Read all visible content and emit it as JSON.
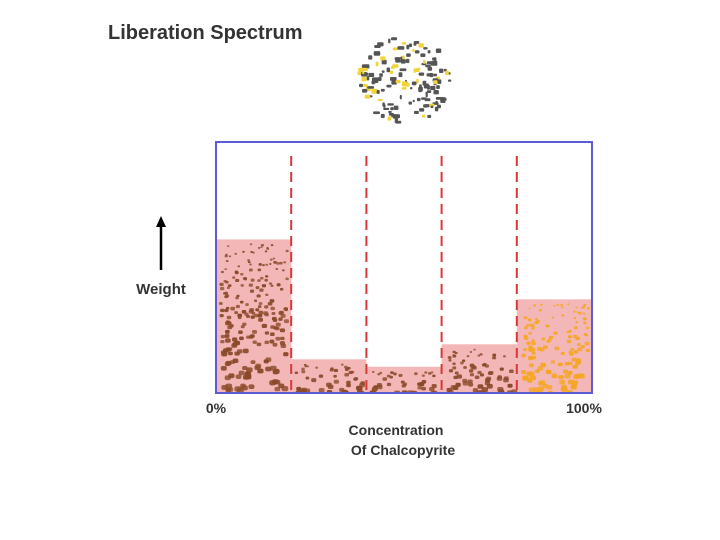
{
  "title": "Liberation Spectrum",
  "ylabel": "Weight",
  "xlabel_line1": "Concentration",
  "xlabel_line2": "Of Chalcopyrite",
  "colors": {
    "frame": "#5b5bd6",
    "divider": "#d9383a",
    "bar_fill": "#f4b7b7",
    "gangue_particle": "#8a4a2a",
    "mineral_particle": "#f5a623",
    "sample_gray": "#555555",
    "sample_yellow": "#f2d43a"
  },
  "chart_data": {
    "type": "bar",
    "x_tick_labels": [
      "0%",
      "100%"
    ],
    "categories": [
      "",
      "",
      "",
      "",
      ""
    ],
    "values": [
      8.2,
      1.8,
      1.4,
      2.6,
      5.0
    ],
    "ylim": [
      0,
      13.4
    ],
    "grid": false,
    "legend": "none"
  }
}
